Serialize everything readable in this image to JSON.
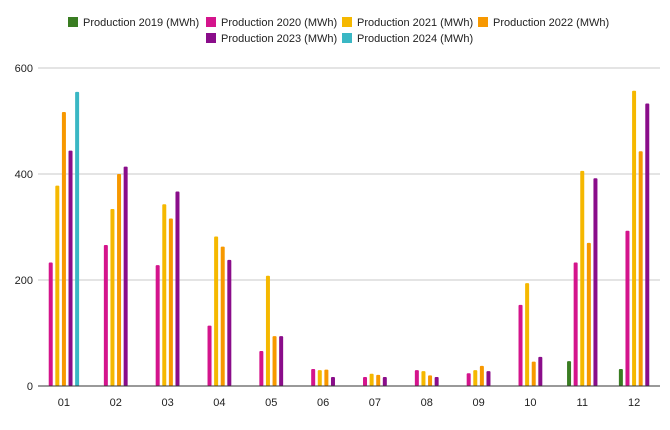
{
  "colors": {
    "Production 2019 (MWh)": "#3a7d22",
    "Production 2020 (MWh)": "#d4148c",
    "Production 2021 (MWh)": "#f5b800",
    "Production 2022 (MWh)": "#f79800",
    "Production 2023 (MWh)": "#8a0d8a",
    "Production 2024 (MWh)": "#3ab7c4",
    "gridline": "#c8c8c8",
    "axis": "#333333"
  },
  "chart_data": {
    "type": "bar",
    "title": "",
    "xlabel": "",
    "ylabel": "",
    "ylim": [
      0,
      600
    ],
    "yticks": [
      0,
      200,
      400,
      600
    ],
    "grid": true,
    "legend_position": "top",
    "categories": [
      "01",
      "02",
      "03",
      "04",
      "05",
      "06",
      "07",
      "08",
      "09",
      "10",
      "11",
      "12"
    ],
    "series": [
      {
        "name": "Production 2019 (MWh)",
        "values": [
          null,
          null,
          null,
          null,
          null,
          null,
          null,
          null,
          null,
          null,
          47,
          32
        ]
      },
      {
        "name": "Production 2020 (MWh)",
        "values": [
          233,
          266,
          228,
          114,
          66,
          32,
          17,
          30,
          24,
          153,
          233,
          293
        ]
      },
      {
        "name": "Production 2021 (MWh)",
        "values": [
          378,
          334,
          343,
          282,
          208,
          30,
          23,
          28,
          30,
          194,
          406,
          557
        ]
      },
      {
        "name": "Production 2022 (MWh)",
        "values": [
          517,
          400,
          316,
          263,
          94,
          31,
          21,
          20,
          38,
          46,
          270,
          443
        ]
      },
      {
        "name": "Production 2023 (MWh)",
        "values": [
          444,
          414,
          367,
          238,
          94,
          17,
          17,
          17,
          28,
          55,
          392,
          533
        ]
      },
      {
        "name": "Production 2024 (MWh)",
        "values": [
          555,
          null,
          null,
          null,
          null,
          null,
          null,
          null,
          null,
          null,
          null,
          null
        ]
      }
    ]
  }
}
